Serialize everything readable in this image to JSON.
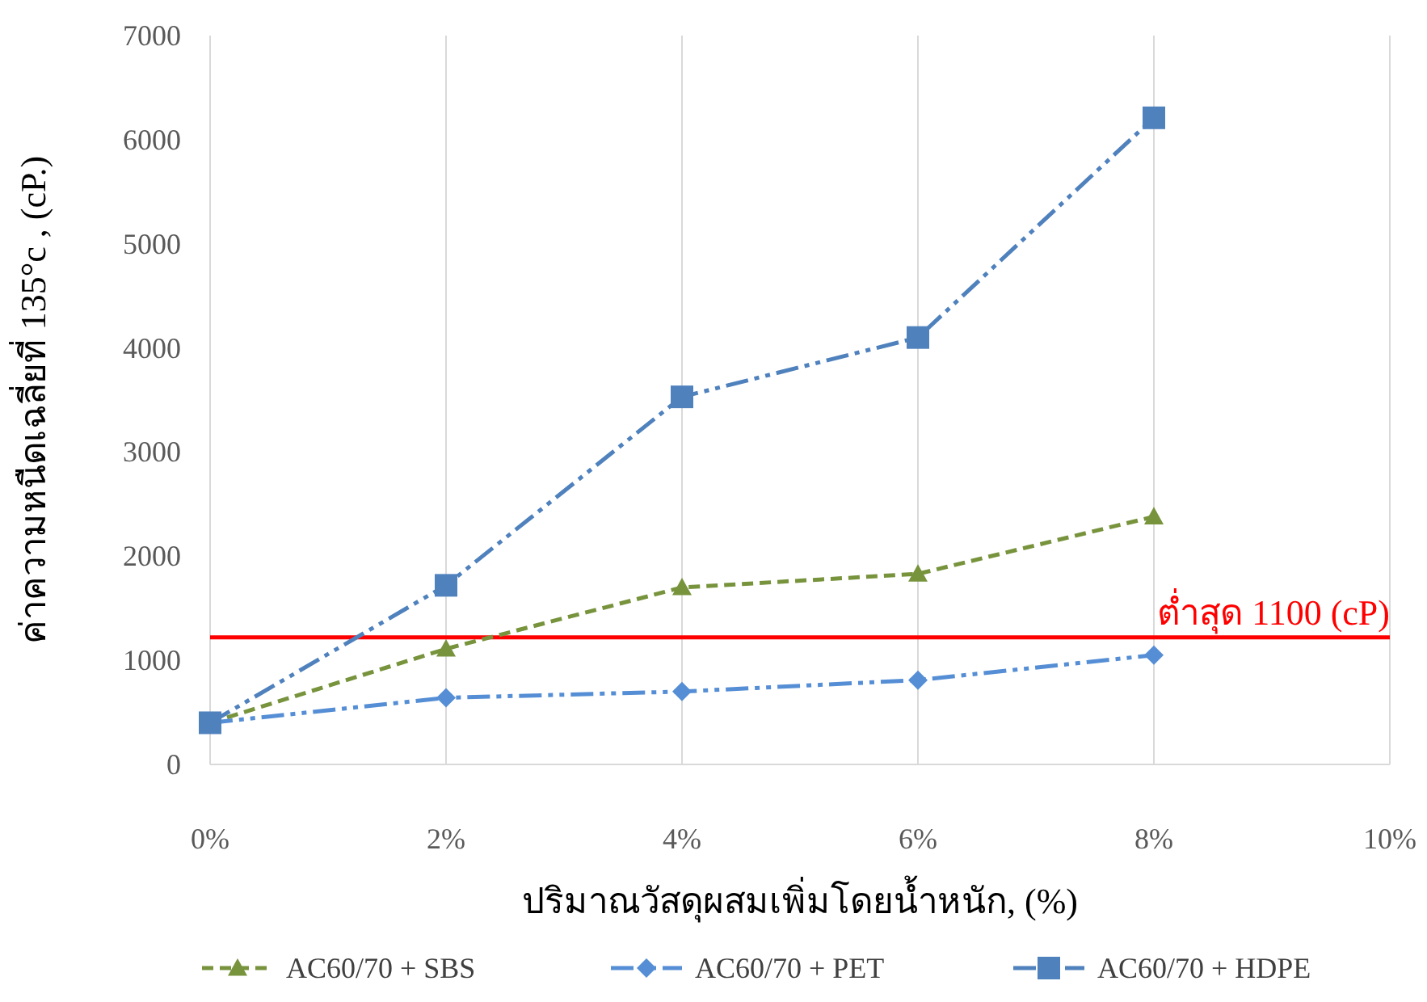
{
  "chart_data": {
    "type": "line",
    "xlabel": "ปริมาณวัสดุผสมเพิ่มโดยน้ำหนัก, (%)",
    "ylabel": "ค่าความหนืดเฉลี่ยที่ 135°c , (cP.)",
    "x": [
      0,
      2,
      4,
      6,
      8
    ],
    "series": [
      {
        "name": "AC60/70 + SBS",
        "color": "#77933c",
        "marker": "triangle",
        "line_style": "dashed",
        "values": [
          400,
          1110,
          1700,
          1830,
          2380
        ]
      },
      {
        "name": "AC60/70 + PET",
        "color": "#558ed5",
        "marker": "diamond",
        "line_style": "dashdot",
        "values": [
          400,
          640,
          700,
          810,
          1050
        ]
      },
      {
        "name": "AC60/70 + HDPE",
        "color": "#4f81bd",
        "marker": "square",
        "line_style": "dashdot",
        "values": [
          400,
          1720,
          3530,
          4100,
          6210
        ]
      }
    ],
    "xlim": [
      0,
      10
    ],
    "xticks": [
      {
        "value": 0,
        "label": "0%"
      },
      {
        "value": 2,
        "label": "2%"
      },
      {
        "value": 4,
        "label": "4%"
      },
      {
        "value": 6,
        "label": "6%"
      },
      {
        "value": 8,
        "label": "8%"
      },
      {
        "value": 10,
        "label": "10%"
      }
    ],
    "ylim": [
      0,
      7000
    ],
    "yticks": [
      0,
      1000,
      2000,
      3000,
      4000,
      5000,
      6000,
      7000
    ],
    "ref_lines": [
      {
        "axis": "y",
        "value": 1220,
        "label": "ต่ำสุด 1100 (cP)",
        "color": "#ff0000",
        "line_style": "solid"
      }
    ],
    "grid": "x",
    "legend": "bottom"
  }
}
